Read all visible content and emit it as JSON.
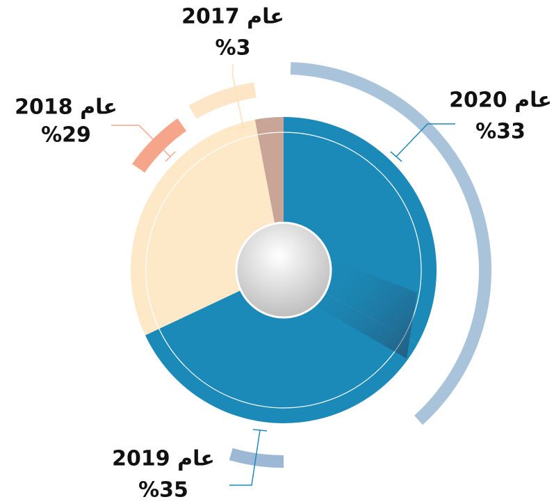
{
  "chart_data": {
    "type": "pie",
    "categories": [
      "عام 2020",
      "عام 2019",
      "عام 2018",
      "عام 2017"
    ],
    "values": [
      33,
      35,
      29,
      3
    ],
    "value_labels": [
      "%33",
      "%35",
      "%29",
      "%3"
    ],
    "colors": [
      "#1b8ab8",
      "#1b8ab8",
      "#fde8c8",
      "#c8a596"
    ]
  }
}
